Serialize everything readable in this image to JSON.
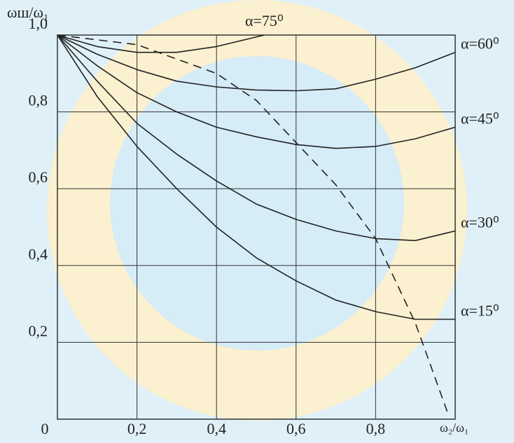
{
  "chart_data": {
    "type": "line",
    "x_label": "ω₂/ω₁",
    "y_label": "ωш/ω₁",
    "xlim": [
      0,
      1
    ],
    "ylim": [
      0,
      1
    ],
    "xticks": [
      0,
      {
        "value": 0.2,
        "label": "0,2"
      },
      {
        "value": 0.4,
        "label": "0,4"
      },
      {
        "value": 0.6,
        "label": "0,6"
      },
      {
        "value": 0.8,
        "label": "0,8"
      }
    ],
    "yticks": [
      {
        "value": 0.2,
        "label": "0,2"
      },
      {
        "value": 0.4,
        "label": "0,4"
      },
      {
        "value": 0.6,
        "label": "0,6"
      },
      {
        "value": 0.8,
        "label": "0,8"
      },
      {
        "value": 1,
        "label": "1,0"
      }
    ],
    "grid": true,
    "series": [
      {
        "name": "α=75⁰",
        "color": "#222222",
        "x": [
          0,
          0.1,
          0.2,
          0.3,
          0.4,
          0.52
        ],
        "values": [
          1.0,
          0.97,
          0.955,
          0.955,
          0.97,
          1.0
        ]
      },
      {
        "name": "α=60⁰",
        "color": "#222222",
        "x": [
          0,
          0.1,
          0.2,
          0.3,
          0.4,
          0.5,
          0.6,
          0.7,
          0.8,
          0.9,
          1.0
        ],
        "values": [
          1.0,
          0.95,
          0.91,
          0.88,
          0.865,
          0.857,
          0.855,
          0.86,
          0.885,
          0.915,
          0.955
        ]
      },
      {
        "name": "α=45⁰",
        "color": "#222222",
        "x": [
          0,
          0.1,
          0.2,
          0.3,
          0.4,
          0.5,
          0.6,
          0.7,
          0.8,
          0.9,
          1.0
        ],
        "values": [
          1.0,
          0.92,
          0.85,
          0.8,
          0.76,
          0.735,
          0.715,
          0.705,
          0.71,
          0.73,
          0.76
        ]
      },
      {
        "name": "α=30⁰",
        "color": "#222222",
        "x": [
          0,
          0.1,
          0.2,
          0.3,
          0.4,
          0.5,
          0.6,
          0.7,
          0.8,
          0.9,
          1.0
        ],
        "values": [
          1.0,
          0.88,
          0.77,
          0.69,
          0.62,
          0.56,
          0.52,
          0.49,
          0.47,
          0.465,
          0.49
        ]
      },
      {
        "name": "α=15⁰",
        "color": "#222222",
        "x": [
          0,
          0.1,
          0.2,
          0.3,
          0.4,
          0.5,
          0.6,
          0.7,
          0.8,
          0.9,
          1.0
        ],
        "values": [
          1.0,
          0.84,
          0.71,
          0.6,
          0.5,
          0.42,
          0.36,
          0.31,
          0.28,
          0.26,
          0.26
        ]
      },
      {
        "color": "#222222",
        "style": "dashed",
        "x": [
          0,
          0.2,
          0.4,
          0.5,
          0.6,
          0.7,
          0.8,
          0.9,
          0.98
        ],
        "values": [
          1.0,
          0.975,
          0.9,
          0.83,
          0.72,
          0.61,
          0.47,
          0.25,
          0.02
        ]
      }
    ]
  }
}
